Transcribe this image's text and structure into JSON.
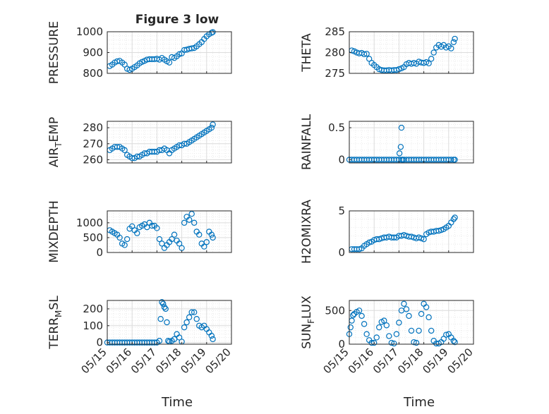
{
  "figure": {
    "title": "Figure 3 low"
  },
  "style": {
    "marker_color": "#0072bd",
    "axis_color": "#262626",
    "grid_color": "#dcdcdc"
  },
  "x_axis": {
    "xlabel": "Time",
    "xlim": [
      "05/15",
      "05/20"
    ],
    "ticks": [
      "05/15",
      "05/16",
      "05/17",
      "05/18",
      "05/19",
      "05/20"
    ]
  },
  "chart_data": [
    {
      "type": "scatter",
      "ylabel": "PRESSURE",
      "ylim": [
        800,
        1000
      ],
      "yticks": [
        800,
        900,
        1000
      ],
      "ytick_labels": [
        "800",
        "900",
        "1000"
      ],
      "grid": true,
      "marker": "open-circle",
      "x_day_of_may": [
        15.1,
        15.2,
        15.3,
        15.4,
        15.5,
        15.6,
        15.7,
        15.8,
        15.9,
        16.0,
        16.1,
        16.2,
        16.3,
        16.4,
        16.5,
        16.6,
        16.7,
        16.8,
        16.9,
        17.0,
        17.1,
        17.2,
        17.3,
        17.4,
        17.5,
        17.6,
        17.7,
        17.8,
        17.9,
        18.0,
        18.1,
        18.2,
        18.3,
        18.4,
        18.5,
        18.6,
        18.7,
        18.8,
        18.9,
        19.0,
        19.1,
        19.2,
        19.25
      ],
      "y": [
        835,
        842,
        852,
        858,
        860,
        852,
        842,
        822,
        817,
        822,
        830,
        838,
        848,
        855,
        860,
        866,
        868,
        868,
        868,
        870,
        866,
        874,
        866,
        858,
        852,
        878,
        874,
        882,
        892,
        896,
        912,
        914,
        918,
        920,
        922,
        930,
        940,
        950,
        965,
        978,
        988,
        995,
        998
      ]
    },
    {
      "type": "scatter",
      "ylabel": "THETA",
      "ylim": [
        275,
        285
      ],
      "yticks": [
        275,
        280,
        285
      ],
      "ytick_labels": [
        "275",
        "280",
        "285"
      ],
      "grid": true,
      "marker": "open-circle",
      "x_day_of_may": [
        15.1,
        15.2,
        15.3,
        15.4,
        15.5,
        15.6,
        15.7,
        15.8,
        15.9,
        16.0,
        16.1,
        16.2,
        16.3,
        16.4,
        16.5,
        16.6,
        16.7,
        16.8,
        16.9,
        17.0,
        17.1,
        17.2,
        17.3,
        17.4,
        17.5,
        17.6,
        17.7,
        17.8,
        17.9,
        18.0,
        18.1,
        18.2,
        18.3,
        18.4,
        18.5,
        18.6,
        18.7,
        18.8,
        18.9,
        19.0,
        19.1,
        19.2,
        19.25
      ],
      "y": [
        280.5,
        280.3,
        280.0,
        279.8,
        279.9,
        279.6,
        279.7,
        278.5,
        277.5,
        277.0,
        276.5,
        276.0,
        275.8,
        275.7,
        275.7,
        275.8,
        275.7,
        275.8,
        275.8,
        276.0,
        276.2,
        276.5,
        277.2,
        277.5,
        277.3,
        277.5,
        277.3,
        277.8,
        277.6,
        277.5,
        277.7,
        277.4,
        278.5,
        280.0,
        281.2,
        281.8,
        281.4,
        281.8,
        281.2,
        281.5,
        281.0,
        282.5,
        283.3
      ]
    },
    {
      "type": "scatter",
      "ylabel": "AIR_TEMP",
      "ylim": [
        258,
        284
      ],
      "yticks": [
        260,
        270,
        280
      ],
      "ytick_labels": [
        "260",
        "270",
        "280"
      ],
      "grid": true,
      "marker": "open-circle",
      "x_day_of_may": [
        15.1,
        15.2,
        15.3,
        15.4,
        15.5,
        15.6,
        15.7,
        15.8,
        15.9,
        16.0,
        16.1,
        16.2,
        16.3,
        16.4,
        16.5,
        16.6,
        16.7,
        16.8,
        16.9,
        17.0,
        17.1,
        17.2,
        17.3,
        17.4,
        17.5,
        17.6,
        17.7,
        17.8,
        17.9,
        18.0,
        18.1,
        18.2,
        18.3,
        18.4,
        18.5,
        18.6,
        18.7,
        18.8,
        18.9,
        19.0,
        19.1,
        19.2,
        19.25
      ],
      "y": [
        266,
        267,
        268,
        268,
        268,
        267,
        266,
        263,
        262,
        261,
        261,
        262,
        262,
        263,
        264,
        264,
        265,
        265,
        265,
        265,
        266,
        266,
        267,
        266,
        264,
        266,
        267,
        268,
        269,
        269,
        270,
        270,
        271,
        272,
        273,
        274,
        275,
        276,
        277,
        278,
        279,
        280,
        282
      ]
    },
    {
      "type": "scatter",
      "ylabel": "RAINFALL",
      "ylim": [
        -0.05,
        0.6
      ],
      "yticks": [
        0,
        0.5
      ],
      "ytick_labels": [
        "0",
        "0.5"
      ],
      "grid": true,
      "marker": "open-circle",
      "x_day_of_may": [
        15.0,
        15.1,
        15.2,
        15.3,
        15.4,
        15.5,
        15.6,
        15.7,
        15.8,
        15.9,
        16.0,
        16.1,
        16.2,
        16.3,
        16.4,
        16.5,
        16.6,
        16.7,
        16.8,
        16.9,
        17.0,
        17.1,
        17.15,
        17.2,
        17.3,
        17.4,
        17.5,
        17.6,
        17.7,
        17.8,
        17.9,
        18.0,
        18.1,
        18.2,
        18.3,
        18.4,
        18.5,
        18.6,
        18.7,
        18.8,
        18.9,
        19.0,
        19.1,
        19.2,
        19.25,
        17.02,
        17.07,
        17.1
      ],
      "y": [
        0,
        0,
        0,
        0,
        0,
        0,
        0,
        0,
        0,
        0,
        0,
        0,
        0,
        0,
        0,
        0,
        0,
        0,
        0,
        0,
        0,
        0,
        0,
        0,
        0,
        0,
        0,
        0,
        0,
        0,
        0,
        0,
        0,
        0,
        0,
        0,
        0,
        0,
        0,
        0,
        0,
        0,
        0,
        0,
        0,
        0.1,
        0.2,
        0.5
      ]
    },
    {
      "type": "scatter",
      "ylabel": "MIXDEPTH",
      "ylim": [
        0,
        1400
      ],
      "yticks": [
        0,
        500,
        1000
      ],
      "ytick_labels": [
        "0",
        "500",
        "1000"
      ],
      "grid": true,
      "marker": "open-circle",
      "x_day_of_may": [
        15.1,
        15.2,
        15.3,
        15.4,
        15.5,
        15.6,
        15.7,
        15.8,
        15.9,
        16.0,
        16.1,
        16.2,
        16.3,
        16.4,
        16.5,
        16.6,
        16.7,
        16.8,
        16.9,
        17.0,
        17.1,
        17.2,
        17.3,
        17.4,
        17.5,
        17.6,
        17.7,
        17.8,
        17.9,
        18.0,
        18.1,
        18.2,
        18.3,
        18.4,
        18.5,
        18.6,
        18.7,
        18.8,
        18.9,
        19.0,
        19.1,
        19.2,
        19.25
      ],
      "y": [
        750,
        700,
        650,
        600,
        500,
        300,
        250,
        450,
        800,
        880,
        750,
        650,
        850,
        900,
        950,
        850,
        1000,
        900,
        900,
        820,
        450,
        300,
        150,
        250,
        350,
        450,
        600,
        400,
        300,
        150,
        1000,
        1200,
        1100,
        1300,
        1000,
        700,
        600,
        300,
        200,
        350,
        700,
        600,
        500
      ]
    },
    {
      "type": "scatter",
      "ylabel": "H2OMIXRA",
      "ylim": [
        0,
        5
      ],
      "yticks": [
        0,
        5
      ],
      "ytick_labels": [
        "0",
        "5"
      ],
      "grid": true,
      "marker": "open-circle",
      "x_day_of_may": [
        15.1,
        15.2,
        15.3,
        15.4,
        15.5,
        15.6,
        15.7,
        15.8,
        15.9,
        16.0,
        16.1,
        16.2,
        16.3,
        16.4,
        16.5,
        16.6,
        16.7,
        16.8,
        16.9,
        17.0,
        17.1,
        17.2,
        17.3,
        17.4,
        17.5,
        17.6,
        17.7,
        17.8,
        17.9,
        18.0,
        18.1,
        18.2,
        18.3,
        18.4,
        18.5,
        18.6,
        18.7,
        18.8,
        18.9,
        19.0,
        19.1,
        19.2,
        19.25
      ],
      "y": [
        0.4,
        0.4,
        0.4,
        0.4,
        0.5,
        0.8,
        1.0,
        1.2,
        1.3,
        1.5,
        1.6,
        1.6,
        1.7,
        1.8,
        1.8,
        1.9,
        1.8,
        1.8,
        1.8,
        2.0,
        2.0,
        2.1,
        2.0,
        1.9,
        1.9,
        1.8,
        1.7,
        1.8,
        1.7,
        1.6,
        2.2,
        2.4,
        2.5,
        2.5,
        2.6,
        2.6,
        2.7,
        2.8,
        3.0,
        3.2,
        3.6,
        4.0,
        4.2
      ]
    },
    {
      "type": "scatter",
      "ylabel": "TERR_MSL",
      "ylim": [
        -10,
        250
      ],
      "yticks": [
        0,
        100,
        200
      ],
      "ytick_labels": [
        "0",
        "100",
        "200"
      ],
      "grid": true,
      "marker": "open-circle",
      "x_day_of_may": [
        15.0,
        15.1,
        15.2,
        15.3,
        15.4,
        15.5,
        15.6,
        15.7,
        15.8,
        15.9,
        16.0,
        16.1,
        16.2,
        16.3,
        16.4,
        16.5,
        16.6,
        16.7,
        16.8,
        16.9,
        17.0,
        17.1,
        17.15,
        17.2,
        17.25,
        17.3,
        17.35,
        17.4,
        17.45,
        17.5,
        17.6,
        17.7,
        17.8,
        17.9,
        18.0,
        18.1,
        18.2,
        18.3,
        18.4,
        18.5,
        18.6,
        18.7,
        18.8,
        18.9,
        19.0,
        19.1,
        19.2,
        19.25
      ],
      "y": [
        0,
        0,
        0,
        0,
        0,
        0,
        0,
        0,
        0,
        0,
        0,
        0,
        0,
        0,
        0,
        0,
        0,
        0,
        0,
        0,
        0,
        10,
        140,
        240,
        230,
        210,
        200,
        120,
        10,
        5,
        10,
        20,
        50,
        30,
        5,
        90,
        120,
        150,
        180,
        180,
        140,
        100,
        90,
        100,
        80,
        60,
        40,
        20
      ]
    },
    {
      "type": "scatter",
      "ylabel": "SUN_FLUX",
      "ylim": [
        0,
        650
      ],
      "yticks": [
        0,
        500
      ],
      "ytick_labels": [
        "0",
        "500"
      ],
      "grid": true,
      "marker": "open-circle",
      "x_day_of_may": [
        15.0,
        15.05,
        15.1,
        15.15,
        15.2,
        15.3,
        15.4,
        15.5,
        15.6,
        15.7,
        15.8,
        15.9,
        16.0,
        16.1,
        16.2,
        16.3,
        16.4,
        16.5,
        16.6,
        16.7,
        16.8,
        16.9,
        17.0,
        17.1,
        17.2,
        17.3,
        17.4,
        17.5,
        17.6,
        17.7,
        17.8,
        17.9,
        18.0,
        18.1,
        18.2,
        18.3,
        18.4,
        18.5,
        18.6,
        18.7,
        18.8,
        18.9,
        19.0,
        19.1,
        19.2,
        19.25
      ],
      "y": [
        150,
        250,
        350,
        430,
        450,
        480,
        500,
        420,
        300,
        150,
        60,
        20,
        20,
        100,
        250,
        330,
        350,
        280,
        120,
        20,
        10,
        150,
        320,
        500,
        600,
        520,
        420,
        200,
        30,
        20,
        200,
        450,
        600,
        550,
        400,
        200,
        50,
        10,
        10,
        30,
        80,
        140,
        150,
        100,
        50,
        30
      ]
    }
  ]
}
